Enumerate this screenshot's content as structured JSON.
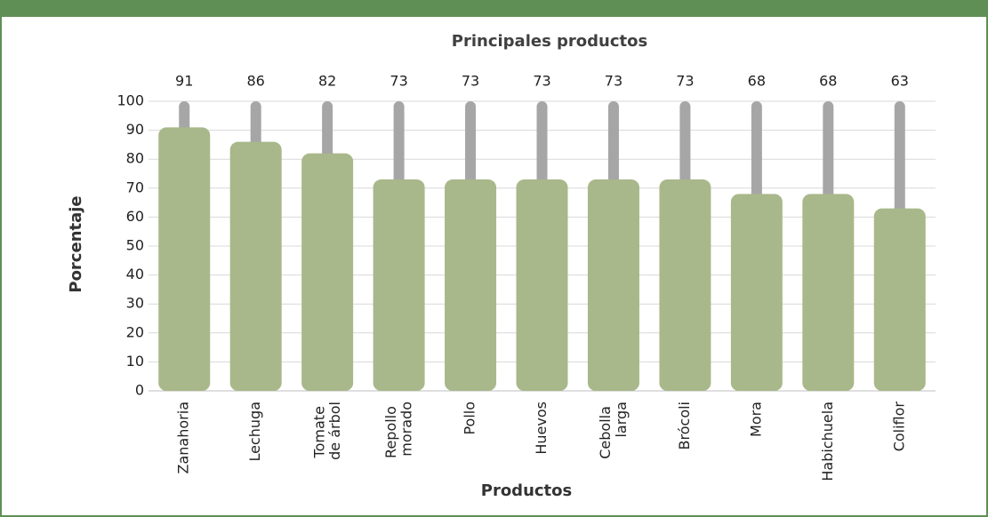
{
  "chart_data": {
    "type": "bar",
    "title": "Principales productos",
    "x_label": "Productos",
    "y_label": "Porcentaje",
    "categories": [
      "Zanahoria",
      "Lechuga",
      "Tomate de árbol",
      "Repollo morado",
      "Pollo",
      "Huevos",
      "Cebolla larga",
      "Brócoli",
      "Mora",
      "Habichuela",
      "Coliflor"
    ],
    "values": [
      91,
      86,
      82,
      73,
      73,
      73,
      73,
      73,
      68,
      68,
      63
    ],
    "color": "#a8b88a",
    "track_color": "#a6a6a6",
    "ylim": [
      0,
      100
    ],
    "yticks": [
      0,
      10,
      20,
      30,
      40,
      50,
      60,
      70,
      80,
      90,
      100
    ],
    "grid": true
  }
}
